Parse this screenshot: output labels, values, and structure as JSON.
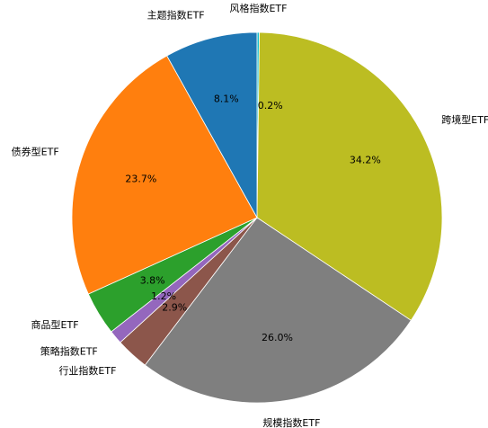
{
  "chart_data": {
    "type": "pie",
    "categories": [
      "风格指数ETF",
      "跨境型ETF",
      "规模指数ETF",
      "行业指数ETF",
      "策略指数ETF",
      "商品型ETF",
      "债券型ETF",
      "主题指数ETF"
    ],
    "values": [
      0.2,
      34.2,
      26.0,
      2.9,
      1.2,
      3.8,
      23.7,
      8.1
    ],
    "percent_labels": [
      "0.2%",
      "34.2%",
      "26.0%",
      "2.9%",
      "1.2%",
      "3.8%",
      "23.7%",
      "8.1%"
    ],
    "colors": [
      "#17becf",
      "#bcbd22",
      "#7f7f7f",
      "#8c564b",
      "#9467bd",
      "#2ca02c",
      "#ff7f0e",
      "#1f77b4"
    ],
    "start": "top",
    "direction": "clockwise"
  }
}
